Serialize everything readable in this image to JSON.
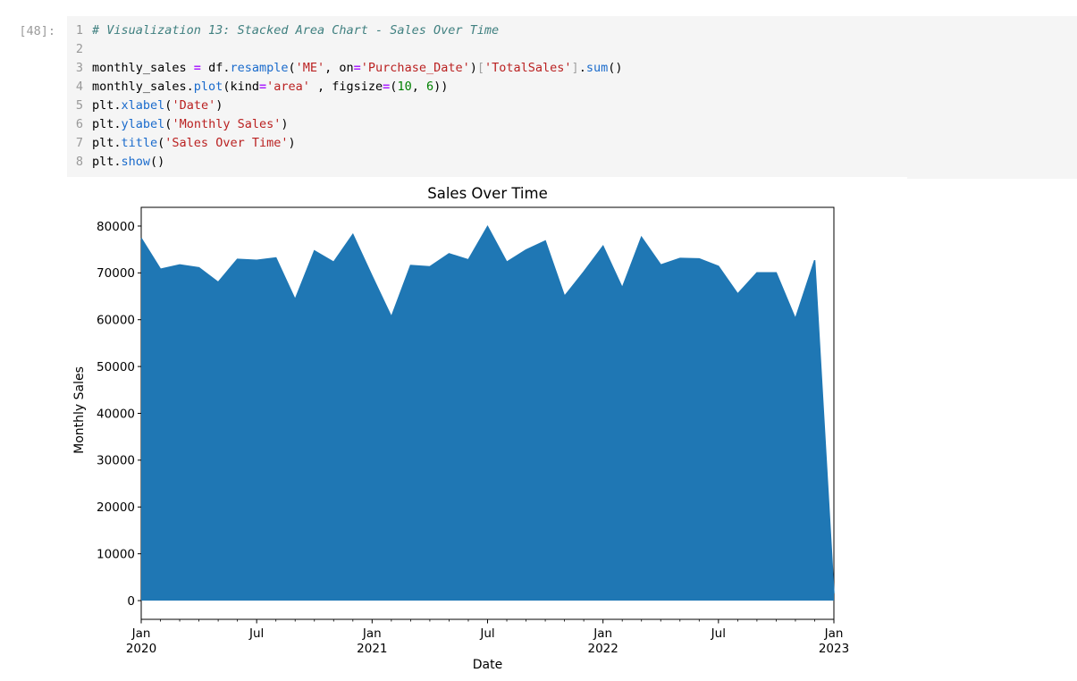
{
  "notebook": {
    "execution_prompt": "[48]:",
    "syntax_colors": {
      "com": "#408080",
      "str": "#ba2121",
      "op": "#aa22ff",
      "fn": "#1a6bcc",
      "num": "#008000",
      "br": "#a2a2a2",
      "pl": "#000000",
      "line_number": "#999999",
      "prompt": "#9b9b9b"
    },
    "code": {
      "lines": [
        {
          "n": "1",
          "tokens": [
            {
              "t": "# Visualization 13: Stacked Area Chart - Sales Over Time",
              "c": "com"
            }
          ]
        },
        {
          "n": "2",
          "tokens": []
        },
        {
          "n": "3",
          "tokens": [
            {
              "t": "monthly_sales ",
              "c": "pl"
            },
            {
              "t": "=",
              "c": "op"
            },
            {
              "t": " df.",
              "c": "pl"
            },
            {
              "t": "resample",
              "c": "fn"
            },
            {
              "t": "(",
              "c": "pl"
            },
            {
              "t": "'ME'",
              "c": "str"
            },
            {
              "t": ", on",
              "c": "pl"
            },
            {
              "t": "=",
              "c": "op"
            },
            {
              "t": "'Purchase_Date'",
              "c": "str"
            },
            {
              "t": ")",
              "c": "pl"
            },
            {
              "t": "[",
              "c": "br"
            },
            {
              "t": "'TotalSales'",
              "c": "str"
            },
            {
              "t": "]",
              "c": "br"
            },
            {
              "t": ".",
              "c": "pl"
            },
            {
              "t": "sum",
              "c": "fn"
            },
            {
              "t": "()",
              "c": "pl"
            }
          ]
        },
        {
          "n": "4",
          "tokens": [
            {
              "t": "monthly_sales.",
              "c": "pl"
            },
            {
              "t": "plot",
              "c": "fn"
            },
            {
              "t": "(kind",
              "c": "pl"
            },
            {
              "t": "=",
              "c": "op"
            },
            {
              "t": "'area'",
              "c": "str"
            },
            {
              "t": " , figsize",
              "c": "pl"
            },
            {
              "t": "=",
              "c": "op"
            },
            {
              "t": "(",
              "c": "pl"
            },
            {
              "t": "10",
              "c": "num"
            },
            {
              "t": ", ",
              "c": "pl"
            },
            {
              "t": "6",
              "c": "num"
            },
            {
              "t": "))",
              "c": "pl"
            }
          ]
        },
        {
          "n": "5",
          "tokens": [
            {
              "t": "plt.",
              "c": "pl"
            },
            {
              "t": "xlabel",
              "c": "fn"
            },
            {
              "t": "(",
              "c": "pl"
            },
            {
              "t": "'Date'",
              "c": "str"
            },
            {
              "t": ")",
              "c": "pl"
            }
          ]
        },
        {
          "n": "6",
          "tokens": [
            {
              "t": "plt.",
              "c": "pl"
            },
            {
              "t": "ylabel",
              "c": "fn"
            },
            {
              "t": "(",
              "c": "pl"
            },
            {
              "t": "'Monthly Sales'",
              "c": "str"
            },
            {
              "t": ")",
              "c": "pl"
            }
          ]
        },
        {
          "n": "7",
          "tokens": [
            {
              "t": "plt.",
              "c": "pl"
            },
            {
              "t": "title",
              "c": "fn"
            },
            {
              "t": "(",
              "c": "pl"
            },
            {
              "t": "'Sales Over Time'",
              "c": "str"
            },
            {
              "t": ")",
              "c": "pl"
            }
          ]
        },
        {
          "n": "8",
          "tokens": [
            {
              "t": "plt.",
              "c": "pl"
            },
            {
              "t": "show",
              "c": "fn"
            },
            {
              "t": "()",
              "c": "pl"
            }
          ]
        }
      ]
    }
  },
  "chart_data": {
    "type": "area",
    "title": "Sales Over Time",
    "xlabel": "Date",
    "ylabel": "Monthly Sales",
    "fill_color": "#1f77b4",
    "xlim": [
      0,
      36
    ],
    "ylim": [
      -4000,
      84000
    ],
    "grid": false,
    "legend": "none",
    "y_ticks": [
      0,
      10000,
      20000,
      30000,
      40000,
      50000,
      60000,
      70000,
      80000
    ],
    "x_ticks": [
      {
        "pos": 0,
        "lines": [
          "Jan",
          "2020"
        ]
      },
      {
        "pos": 6,
        "lines": [
          "Jul"
        ]
      },
      {
        "pos": 12,
        "lines": [
          "Jan",
          "2021"
        ]
      },
      {
        "pos": 18,
        "lines": [
          "Jul"
        ]
      },
      {
        "pos": 24,
        "lines": [
          "Jan",
          "2022"
        ]
      },
      {
        "pos": 30,
        "lines": [
          "Jul"
        ]
      },
      {
        "pos": 36,
        "lines": [
          "Jan",
          "2023"
        ]
      }
    ],
    "x": [
      "2020-01",
      "2020-02",
      "2020-03",
      "2020-04",
      "2020-05",
      "2020-06",
      "2020-07",
      "2020-08",
      "2020-09",
      "2020-10",
      "2020-11",
      "2020-12",
      "2021-01",
      "2021-02",
      "2021-03",
      "2021-04",
      "2021-05",
      "2021-06",
      "2021-07",
      "2021-08",
      "2021-09",
      "2021-10",
      "2021-11",
      "2021-12",
      "2022-01",
      "2022-02",
      "2022-03",
      "2022-04",
      "2022-05",
      "2022-06",
      "2022-07",
      "2022-08",
      "2022-09",
      "2022-10",
      "2022-11",
      "2022-12",
      "2023-01"
    ],
    "values": [
      77400,
      70800,
      71700,
      71100,
      68000,
      72900,
      72700,
      73200,
      64300,
      74700,
      72300,
      78200,
      69300,
      60600,
      71600,
      71300,
      74100,
      72800,
      79900,
      72300,
      74900,
      76800,
      65000,
      70200,
      75700,
      66800,
      77600,
      71700,
      73100,
      73000,
      71400,
      65500,
      70000,
      70000,
      60200,
      72700,
      1500
    ]
  }
}
